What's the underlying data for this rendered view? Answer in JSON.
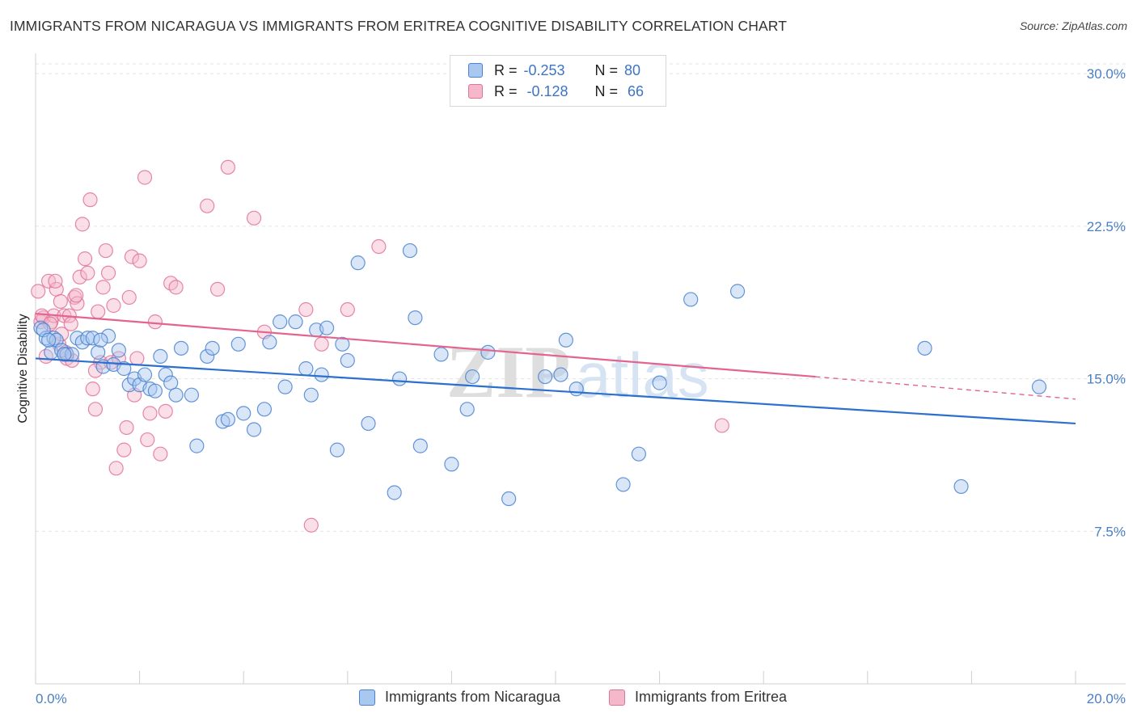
{
  "title": "IMMIGRANTS FROM NICARAGUA VS IMMIGRANTS FROM ERITREA COGNITIVE DISABILITY CORRELATION CHART",
  "source": "Source: ZipAtlas.com",
  "watermark": {
    "zip": "ZIP",
    "atlas": "atlas"
  },
  "legend": {
    "rows": [
      {
        "r_label": "R =",
        "r_value": "-0.253",
        "n_label": "N =",
        "n_value": "80"
      },
      {
        "r_label": "R =",
        "r_value": "-0.128",
        "n_label": "N =",
        "n_value": "66"
      }
    ]
  },
  "colors": {
    "nicaragua_fill": "#a9c8f0",
    "nicaragua_stroke": "#4a82d0",
    "nicaragua_line": "#2b6fcf",
    "eritrea_fill": "#f5b8cb",
    "eritrea_stroke": "#e07398",
    "eritrea_line": "#e3648f",
    "axis_text": "#4a7fc1"
  },
  "chart_data": {
    "type": "scatter",
    "xlabel": "",
    "ylabel": "Cognitive Disability",
    "xlim": [
      0,
      20
    ],
    "ylim": [
      0,
      31
    ],
    "x_tick_labels": [
      "0.0%",
      "20.0%"
    ],
    "y_ticks": [
      7.5,
      15.0,
      22.5,
      30.0
    ],
    "y_tick_labels": [
      "7.5%",
      "15.0%",
      "22.5%",
      "30.0%"
    ],
    "grid": "horizontal dashed",
    "series": [
      {
        "name": "Immigrants from Nicaragua",
        "r": -0.253,
        "n": 80,
        "trend": {
          "x": [
            0,
            20
          ],
          "y": [
            16.0,
            12.8
          ]
        },
        "points": [
          [
            0.1,
            17.5
          ],
          [
            0.2,
            17.0
          ],
          [
            0.3,
            16.3
          ],
          [
            0.35,
            17.0
          ],
          [
            0.4,
            16.9
          ],
          [
            0.5,
            16.4
          ],
          [
            0.6,
            16.2
          ],
          [
            0.7,
            16.2
          ],
          [
            0.8,
            17.0
          ],
          [
            0.9,
            16.8
          ],
          [
            1.0,
            17.0
          ],
          [
            1.1,
            17.0
          ],
          [
            1.2,
            16.3
          ],
          [
            1.3,
            15.6
          ],
          [
            1.4,
            17.1
          ],
          [
            1.5,
            15.7
          ],
          [
            1.6,
            16.4
          ],
          [
            1.7,
            15.5
          ],
          [
            1.8,
            14.7
          ],
          [
            1.9,
            15.0
          ],
          [
            2.0,
            14.7
          ],
          [
            2.1,
            15.2
          ],
          [
            2.2,
            14.5
          ],
          [
            2.3,
            14.4
          ],
          [
            2.4,
            16.1
          ],
          [
            2.5,
            15.2
          ],
          [
            2.6,
            14.8
          ],
          [
            2.8,
            16.5
          ],
          [
            3.0,
            14.2
          ],
          [
            3.1,
            11.7
          ],
          [
            3.3,
            16.1
          ],
          [
            3.4,
            16.5
          ],
          [
            3.6,
            12.9
          ],
          [
            3.7,
            13.0
          ],
          [
            3.9,
            16.7
          ],
          [
            4.0,
            13.3
          ],
          [
            4.2,
            12.5
          ],
          [
            4.4,
            13.5
          ],
          [
            4.5,
            16.8
          ],
          [
            4.7,
            17.8
          ],
          [
            4.8,
            14.6
          ],
          [
            5.0,
            17.8
          ],
          [
            5.2,
            15.5
          ],
          [
            5.3,
            14.2
          ],
          [
            5.4,
            17.4
          ],
          [
            5.5,
            15.2
          ],
          [
            5.6,
            17.5
          ],
          [
            5.8,
            11.5
          ],
          [
            5.9,
            16.7
          ],
          [
            6.0,
            15.9
          ],
          [
            6.2,
            20.7
          ],
          [
            6.4,
            12.8
          ],
          [
            6.9,
            9.4
          ],
          [
            7.0,
            15.0
          ],
          [
            7.2,
            21.3
          ],
          [
            7.3,
            18.0
          ],
          [
            7.4,
            11.7
          ],
          [
            7.8,
            16.2
          ],
          [
            8.0,
            10.8
          ],
          [
            8.3,
            13.5
          ],
          [
            8.4,
            15.1
          ],
          [
            8.7,
            16.3
          ],
          [
            9.1,
            9.1
          ],
          [
            9.8,
            15.1
          ],
          [
            10.1,
            15.2
          ],
          [
            10.2,
            16.9
          ],
          [
            10.4,
            14.5
          ],
          [
            11.3,
            9.8
          ],
          [
            11.6,
            11.3
          ],
          [
            12.0,
            14.8
          ],
          [
            12.6,
            18.9
          ],
          [
            13.5,
            19.3
          ],
          [
            17.1,
            16.5
          ],
          [
            17.8,
            9.7
          ],
          [
            19.3,
            14.6
          ],
          [
            0.15,
            17.4
          ],
          [
            0.25,
            16.9
          ],
          [
            0.55,
            16.2
          ],
          [
            1.25,
            16.9
          ],
          [
            2.7,
            14.2
          ]
        ]
      },
      {
        "name": "Immigrants from Eritrea",
        "r": -0.128,
        "n": 66,
        "trend": {
          "x": [
            0,
            15
          ],
          "y": [
            18.2,
            15.1
          ]
        },
        "trend_ext": {
          "x": [
            15,
            20
          ],
          "y": [
            15.1,
            14.0
          ]
        },
        "points": [
          [
            0.05,
            19.3
          ],
          [
            0.1,
            17.8
          ],
          [
            0.15,
            18.0
          ],
          [
            0.2,
            16.1
          ],
          [
            0.25,
            19.8
          ],
          [
            0.3,
            17.8
          ],
          [
            0.35,
            18.1
          ],
          [
            0.4,
            19.4
          ],
          [
            0.45,
            16.7
          ],
          [
            0.5,
            17.2
          ],
          [
            0.55,
            18.1
          ],
          [
            0.6,
            16.0
          ],
          [
            0.65,
            18.1
          ],
          [
            0.7,
            15.9
          ],
          [
            0.75,
            19.0
          ],
          [
            0.8,
            18.7
          ],
          [
            0.85,
            20.0
          ],
          [
            0.9,
            22.6
          ],
          [
            0.95,
            20.9
          ],
          [
            1.0,
            20.2
          ],
          [
            1.05,
            23.8
          ],
          [
            1.1,
            14.5
          ],
          [
            1.15,
            13.5
          ],
          [
            1.2,
            18.3
          ],
          [
            1.25,
            15.8
          ],
          [
            1.3,
            19.5
          ],
          [
            1.35,
            21.3
          ],
          [
            1.4,
            20.2
          ],
          [
            1.45,
            15.8
          ],
          [
            1.5,
            18.6
          ],
          [
            1.55,
            10.6
          ],
          [
            1.6,
            16.0
          ],
          [
            1.7,
            11.5
          ],
          [
            1.75,
            12.6
          ],
          [
            1.8,
            19.0
          ],
          [
            1.85,
            21.0
          ],
          [
            1.9,
            14.2
          ],
          [
            2.0,
            20.8
          ],
          [
            2.1,
            24.9
          ],
          [
            2.15,
            12.0
          ],
          [
            2.2,
            13.3
          ],
          [
            2.3,
            17.8
          ],
          [
            2.4,
            11.3
          ],
          [
            2.5,
            13.4
          ],
          [
            2.6,
            19.7
          ],
          [
            2.7,
            19.5
          ],
          [
            3.3,
            23.5
          ],
          [
            3.5,
            19.4
          ],
          [
            3.7,
            25.4
          ],
          [
            4.2,
            22.9
          ],
          [
            4.4,
            17.3
          ],
          [
            5.2,
            18.4
          ],
          [
            5.3,
            7.8
          ],
          [
            5.5,
            16.7
          ],
          [
            6.0,
            18.4
          ],
          [
            6.6,
            21.5
          ],
          [
            13.2,
            12.7
          ],
          [
            0.12,
            18.1
          ],
          [
            0.28,
            17.7
          ],
          [
            0.38,
            19.8
          ],
          [
            0.48,
            18.8
          ],
          [
            0.58,
            16.3
          ],
          [
            0.68,
            17.7
          ],
          [
            0.78,
            19.1
          ],
          [
            1.15,
            15.4
          ],
          [
            1.95,
            16.0
          ]
        ]
      }
    ]
  }
}
